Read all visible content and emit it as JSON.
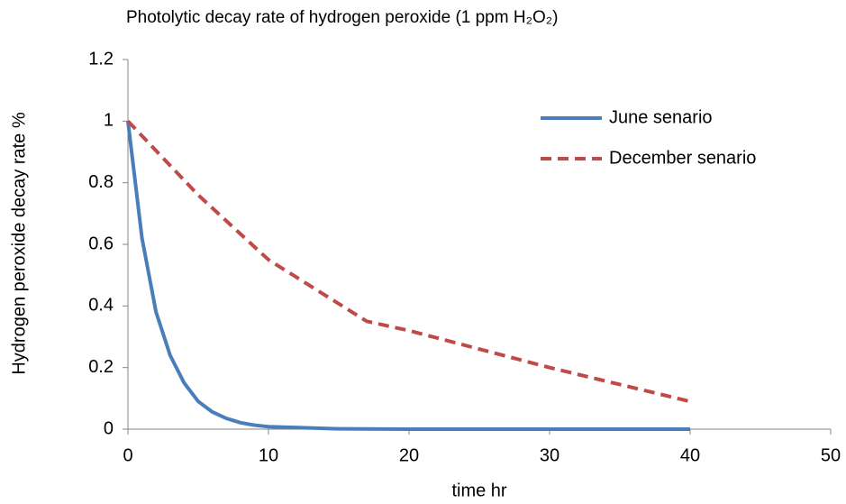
{
  "chart_data": {
    "type": "line",
    "title": "Photolytic decay rate of hydrogen peroxide (1 ppm H₂O₂)",
    "x_label": "time hr",
    "y_label": "Hydrogen peroxide decay rate %",
    "xlim": [
      0,
      50
    ],
    "xticks": [
      0,
      10,
      20,
      30,
      40,
      50
    ],
    "ylim": [
      0,
      1.2
    ],
    "yticks": [
      0,
      0.2,
      0.4,
      0.6,
      0.8,
      1,
      1.2
    ],
    "grid": false,
    "legend": "upper right",
    "series": [
      {
        "name": "June senario",
        "color": "#4a7ebb",
        "dash": "solid",
        "x": [
          0,
          1,
          2,
          3,
          4,
          5,
          6,
          7,
          8,
          9,
          10,
          15,
          20,
          25,
          30,
          35,
          40
        ],
        "values": [
          1,
          0.62,
          0.38,
          0.24,
          0.15,
          0.09,
          0.056,
          0.035,
          0.021,
          0.013,
          0.008,
          0.001,
          0,
          0,
          0,
          0,
          0
        ]
      },
      {
        "name": "December senario",
        "color": "#be4b48",
        "dash": "dashed",
        "x": [
          0,
          5,
          10,
          17,
          20,
          25,
          30,
          35,
          40
        ],
        "values": [
          1,
          0.76,
          0.55,
          0.35,
          0.32,
          0.26,
          0.2,
          0.145,
          0.09
        ]
      }
    ]
  }
}
